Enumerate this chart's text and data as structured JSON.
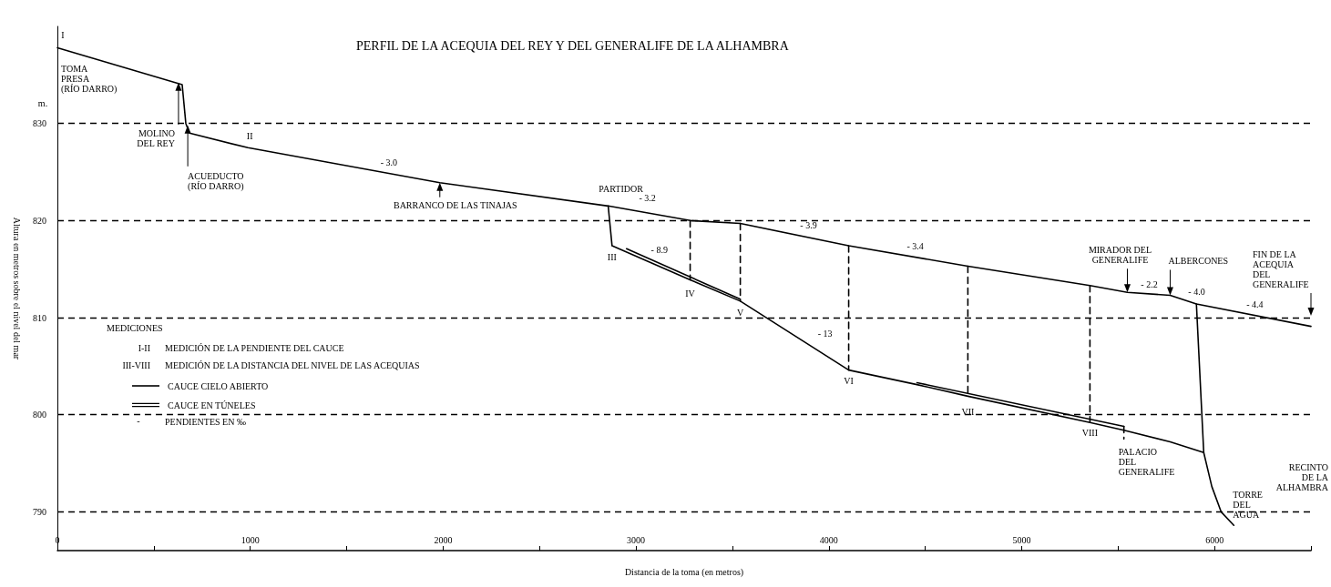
{
  "chart_data": {
    "type": "line",
    "title": "PERFIL DE LA ACEQUIA DEL REY Y DEL GENERALIFE DE LA ALHAMBRA",
    "xlabel": "Distancia de la toma (en metros)",
    "ylabel": "Altura en metros sobre el nivel del mar",
    "xlim": [
      0,
      6500
    ],
    "xticks": [
      0,
      {
        "value": 500,
        "label": null
      },
      1000,
      {
        "value": 1500,
        "label": null
      },
      2000,
      {
        "value": 2500,
        "label": null
      },
      3000,
      {
        "value": 3500,
        "label": null
      },
      4000,
      {
        "value": 4500,
        "label": null
      },
      5000,
      {
        "value": 5500,
        "label": null
      },
      6000,
      {
        "value": 6500,
        "label": null
      }
    ],
    "ylim": [
      786,
      840
    ],
    "yticks": [
      790,
      800,
      810,
      820,
      830
    ],
    "grid": "y",
    "legend": "left",
    "marker": "none",
    "line_style": "solid",
    "series": [
      {
        "name": "CAUCE CIELO ABIERTO",
        "color": "#000000",
        "x": [
          0,
          647,
          666,
          685,
          988,
          1983,
          2856,
          3281,
          3541,
          4103,
          4721,
          5354,
          5548,
          5770,
          5906,
          6500
        ],
        "values": [
          837.8,
          834.0,
          830.0,
          829.0,
          827.5,
          823.9,
          821.5,
          820.0,
          819.7,
          817.4,
          815.3,
          813.3,
          812.6,
          812.3,
          811.4,
          809.1
        ]
      },
      {
        "color": "#000000",
        "x": [
          2856,
          2876,
          3281,
          3541,
          4103,
          4457,
          4721,
          5354,
          5530,
          5770,
          5944
        ],
        "values": [
          821.5,
          817.4,
          813.9,
          811.7,
          804.6,
          803.1,
          801.9,
          799.2,
          798.4,
          797.2,
          796.1
        ]
      },
      {
        "color": "#000000",
        "x": [
          5906,
          5944,
          5986,
          6034,
          6100
        ],
        "values": [
          811.4,
          796.1,
          792.6,
          790.0,
          788.6
        ]
      },
      {
        "name": "CAUCE EN TÚNELES",
        "color": "#000000",
        "x": [
          2951,
          3541
        ],
        "values": [
          817.1,
          811.9
        ]
      },
      {
        "color": "#000000",
        "x": [
          4457,
          5530
        ],
        "values": [
          803.3,
          798.8
        ]
      },
      {
        "color": "#000000",
        "line_style": "dashed",
        "x": [
          3281,
          3281
        ],
        "values": [
          820.0,
          813.9
        ]
      },
      {
        "color": "#000000",
        "line_style": "dashed",
        "x": [
          3541,
          3541
        ],
        "values": [
          819.7,
          811.7
        ]
      },
      {
        "color": "#000000",
        "line_style": "dashed",
        "x": [
          4103,
          4103
        ],
        "values": [
          817.4,
          804.6
        ]
      },
      {
        "color": "#000000",
        "line_style": "dashed",
        "x": [
          4721,
          4721
        ],
        "values": [
          815.3,
          802.2
        ]
      },
      {
        "color": "#000000",
        "line_style": "dashed",
        "x": [
          5354,
          5354
        ],
        "values": [
          813.3,
          799.2
        ]
      },
      {
        "color": "#000000",
        "line_style": "dashed",
        "x": [
          5530,
          5530
        ],
        "values": [
          798.8,
          797.5
        ]
      }
    ],
    "annotations": [
      {
        "text": "I",
        "x": 0,
        "y": 837.8
      },
      {
        "text": "TOMA\nPRESA\n(RÍO DARRO)",
        "x": 0,
        "y": 837.8
      },
      {
        "text": "MOLINO\nDEL REY",
        "x": 628,
        "y": 834.2
      },
      {
        "text": "ACUEDUCTO\n(RÍO DARRO)",
        "x": 676,
        "y": 829.8
      },
      {
        "text": "II",
        "x": 988,
        "y": 827.5
      },
      {
        "text": "BARRANCO DE LAS TINAJAS",
        "x": 1983,
        "y": 823.9
      },
      {
        "text": "PARTIDOR",
        "x": 2856,
        "y": 821.5
      },
      {
        "text": "III",
        "x": 2876,
        "y": 817.4
      },
      {
        "text": "IV",
        "x": 3281,
        "y": 813.9
      },
      {
        "text": "V",
        "x": 3541,
        "y": 811.7
      },
      {
        "text": "VI",
        "x": 4103,
        "y": 804.6
      },
      {
        "text": "VII",
        "x": 4721,
        "y": 801.9
      },
      {
        "text": "VIII",
        "x": 5354,
        "y": 799.2
      },
      {
        "text": "PALACIO\nDEL\nGENERALIFE",
        "x": 5530,
        "y": 797.5
      },
      {
        "text": "MIRADOR DEL\nGENERALIFE",
        "x": 5548,
        "y": 812.6
      },
      {
        "text": "ALBERCONES",
        "x": 5770,
        "y": 812.3
      },
      "FIN DE LA\nACEQUIA\nDEL\nGENERALIFE",
      {
        "text": "TORRE\nDEL\nAGUA",
        "x": 6100,
        "y": 788.6
      },
      {
        "text": "- 3.0",
        "x": 1719,
        "y": 824.8
      },
      {
        "text": "- 3.2",
        "x": 3059,
        "y": 821.2
      },
      {
        "text": "- 3.9",
        "x": 3895,
        "y": 818.3
      },
      {
        "text": "- 3.4",
        "x": 4448,
        "y": 816.2
      },
      {
        "text": "- 2.2",
        "x": 5652,
        "y": 812.4
      },
      {
        "text": "- 4.0",
        "x": 5845,
        "y": 811.8
      },
      {
        "text": "- 4.4",
        "x": 6209,
        "y": 810.2
      },
      {
        "text": "- 8.9",
        "x": 3093,
        "y": 815.7
      },
      {
        "text": "- 13",
        "x": 3914,
        "y": 807.0
      },
      "MEDICIONES",
      "I-II",
      "MEDICIÓN DE LA PENDIENTE DEL CAUCE",
      "III-VIII",
      "MEDICIÓN DE LA DISTANCIA DEL NIVEL DE LAS ACEQUIAS",
      "-",
      "PENDIENTES EN ‰",
      "m.",
      "RECINTO\nDE LA\nALHAMBRA"
    ]
  }
}
